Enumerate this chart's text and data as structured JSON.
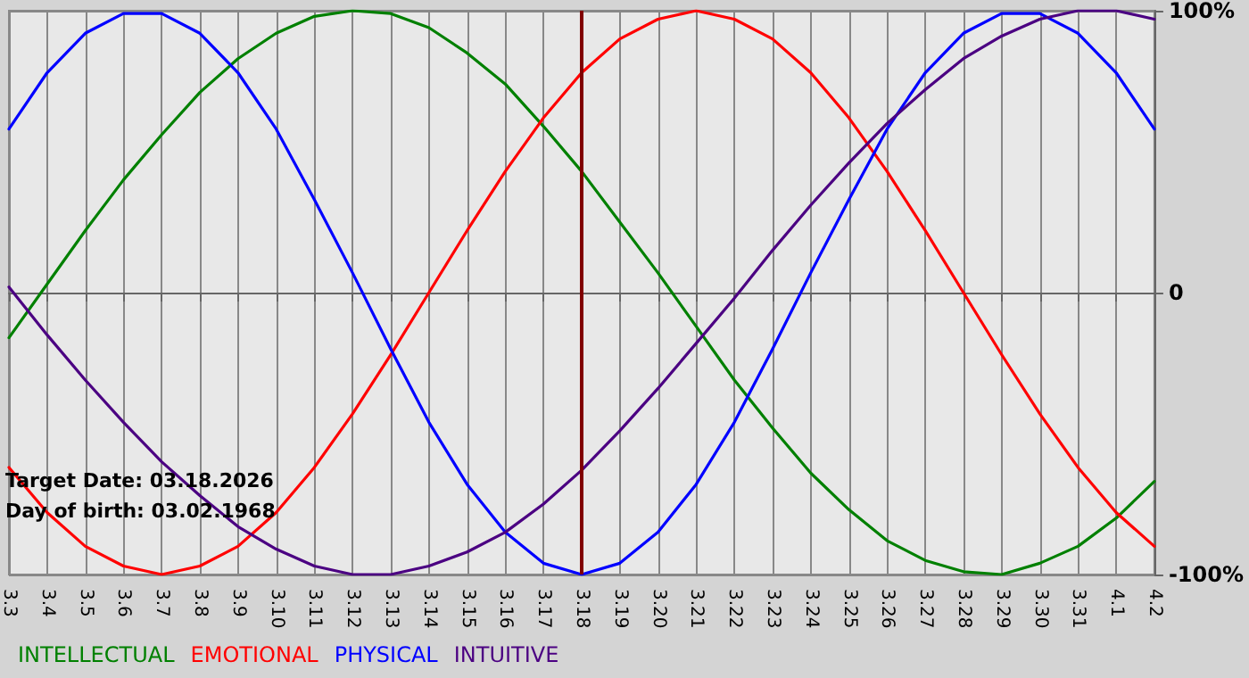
{
  "chart_data": {
    "type": "line",
    "categories": [
      "3.3",
      "3.4",
      "3.5",
      "3.6",
      "3.7",
      "3.8",
      "3.9",
      "3.10",
      "3.11",
      "3.12",
      "3.13",
      "3.14",
      "3.15",
      "3.16",
      "3.17",
      "3.18",
      "3.19",
      "3.20",
      "3.21",
      "3.22",
      "3.23",
      "3.24",
      "3.25",
      "3.26",
      "3.27",
      "3.28",
      "3.29",
      "3.30",
      "3.31",
      "4.1",
      "4.2"
    ],
    "series": [
      {
        "name": "INTELLECTUAL",
        "color": "#008000",
        "values": [
          -16,
          3,
          22,
          40,
          56,
          71,
          83,
          92,
          98,
          100,
          99,
          94,
          85,
          74,
          59,
          43,
          25,
          7,
          -12,
          -31,
          -48,
          -64,
          -77,
          -88,
          -95,
          -99,
          -100,
          -96,
          -90,
          -80,
          -67
        ]
      },
      {
        "name": "EMOTIONAL",
        "color": "#ff0000",
        "values": [
          -62,
          -78,
          -90,
          -97,
          -100,
          -97,
          -90,
          -78,
          -62,
          -43,
          -22,
          0,
          22,
          43,
          62,
          78,
          90,
          97,
          100,
          97,
          90,
          78,
          62,
          43,
          22,
          0,
          -22,
          -43,
          -62,
          -78,
          -90
        ]
      },
      {
        "name": "PHYSICAL",
        "color": "#0000ff",
        "values": [
          58,
          78,
          92,
          99,
          99,
          92,
          78,
          58,
          33,
          7,
          -20,
          -46,
          -68,
          -85,
          -96,
          -100,
          -96,
          -85,
          -68,
          -46,
          -20,
          7,
          33,
          58,
          78,
          92,
          99,
          99,
          92,
          78,
          58
        ]
      },
      {
        "name": "INTUITIVE",
        "color": "#4b0082",
        "values": [
          2,
          -15,
          -31,
          -46,
          -60,
          -72,
          -83,
          -91,
          -97,
          -100,
          -100,
          -97,
          -92,
          -85,
          -75,
          -63,
          -49,
          -34,
          -18,
          -2,
          15,
          31,
          46,
          60,
          72,
          83,
          91,
          97,
          100,
          100,
          97
        ]
      }
    ],
    "ylim": [
      -100,
      100
    ],
    "yticks": [
      {
        "value": -100,
        "label": "-100%"
      },
      0,
      {
        "value": 100,
        "label": "100%"
      }
    ],
    "ref_lines": [
      {
        "axis": "x",
        "value": "3.18",
        "color": "#800000"
      }
    ],
    "annotations": [
      "Target Date: 03.18.2026",
      "Day of birth: 03.02.1968"
    ],
    "grid": true,
    "legend": "bottom left",
    "marker": "none",
    "line_style": "solid"
  }
}
